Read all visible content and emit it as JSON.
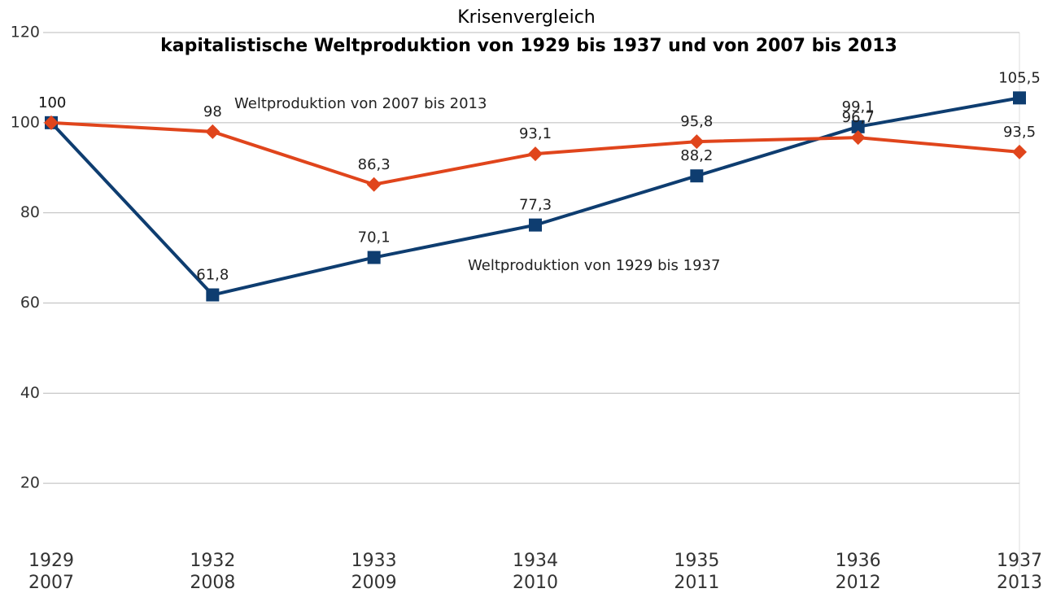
{
  "chart_data": {
    "type": "line",
    "title": "Krisenvergleich",
    "subtitle": "kapitalistische Weltproduktion von 1929 bis 1937 und von 2007 bis 2013",
    "categories": [
      [
        "1929",
        "2007"
      ],
      [
        "1932",
        "2008"
      ],
      [
        "1933",
        "2009"
      ],
      [
        "1934",
        "2010"
      ],
      [
        "1935",
        "2011"
      ],
      [
        "1936",
        "2012"
      ],
      [
        "1937",
        "2013"
      ]
    ],
    "series": [
      {
        "name": "Weltproduktion von 1929 bis 1937",
        "color": "#0e3d70",
        "marker": "square",
        "values": [
          100,
          61.8,
          70.1,
          77.3,
          88.2,
          99.1,
          105.5
        ],
        "value_labels": [
          "100",
          "61,8",
          "70,1",
          "77,3",
          "88,2",
          "99,1",
          "105,5"
        ]
      },
      {
        "name": "Weltproduktion von 2007 bis 2013",
        "color": "#e0451c",
        "marker": "diamond",
        "values": [
          100,
          98,
          86.3,
          93.1,
          95.8,
          96.7,
          93.5
        ],
        "value_labels": [
          "100",
          "98",
          "86,3",
          "93,1",
          "95,8",
          "96,7",
          "93,5"
        ]
      }
    ],
    "ylim": [
      0,
      120
    ],
    "yticks": [
      20,
      40,
      60,
      80,
      100,
      120
    ],
    "grid": true
  }
}
